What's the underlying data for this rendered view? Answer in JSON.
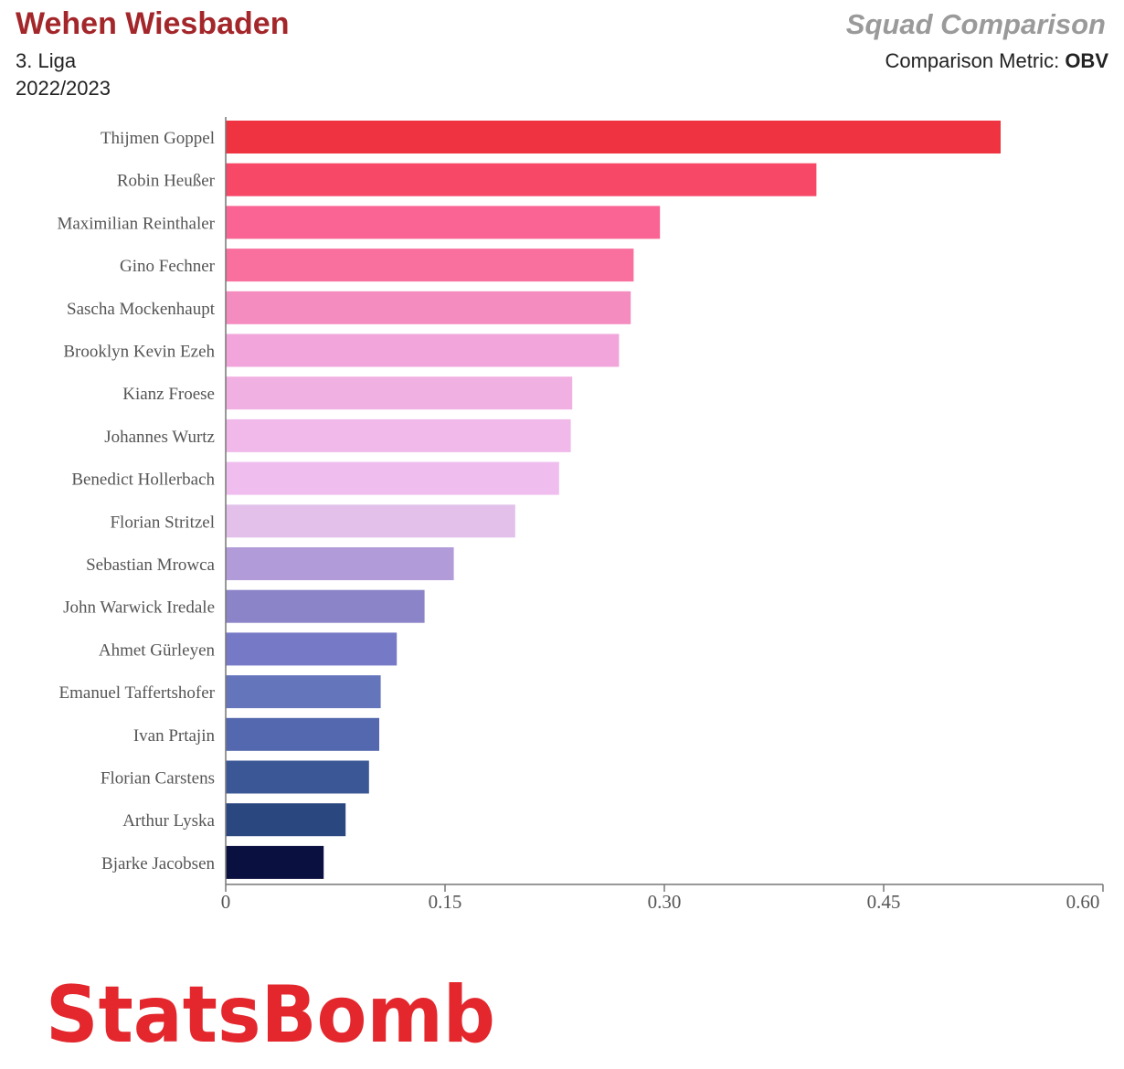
{
  "header": {
    "team": "Wehen Wiesbaden",
    "league": "3. Liga",
    "season": "2022/2023",
    "chart_title": "Squad Comparison",
    "metric_label": "Comparison Metric: ",
    "metric_value": "OBV"
  },
  "brand": {
    "logo_text": "StatsBomb",
    "logo_color": "#e3272d",
    "team_color": "#a3262a"
  },
  "chart_data": {
    "type": "bar",
    "orientation": "horizontal",
    "categories": [
      "Thijmen Goppel",
      "Robin Heußer",
      "Maximilian Reinthaler",
      "Gino Fechner",
      "Sascha Mockenhaupt",
      "Brooklyn Kevin Ezeh",
      "Kianz Froese",
      "Johannes Wurtz",
      "Benedict Hollerbach",
      "Florian Stritzel",
      "Sebastian Mrowca",
      "John Warwick Iredale",
      "Ahmet Gürleyen",
      "Emanuel Taffertshofer",
      "Ivan Prtajin",
      "Florian Carstens",
      "Arthur Lyska",
      "Bjarke Jacobsen"
    ],
    "values": [
      0.53,
      0.404,
      0.297,
      0.279,
      0.277,
      0.269,
      0.237,
      0.236,
      0.228,
      0.198,
      0.156,
      0.136,
      0.117,
      0.106,
      0.105,
      0.098,
      0.082,
      0.067
    ],
    "colors": [
      "#ef3340",
      "#f74868",
      "#f96494",
      "#f96f9e",
      "#f48cc0",
      "#f1a5db",
      "#f1b0e2",
      "#f1b9ea",
      "#efbdee",
      "#e2c0ea",
      "#b19cd9",
      "#8b84c8",
      "#7679c6",
      "#6475bb",
      "#5368ae",
      "#3b5796",
      "#2b4780",
      "#0a1140"
    ],
    "x_ticks": [
      "0",
      "0.15",
      "0.30",
      "0.45",
      "0.60"
    ],
    "tick_values": [
      0,
      0.15,
      0.3,
      0.45,
      0.6
    ],
    "xlim": [
      0,
      0.6
    ],
    "grid": false,
    "legend": "none"
  }
}
